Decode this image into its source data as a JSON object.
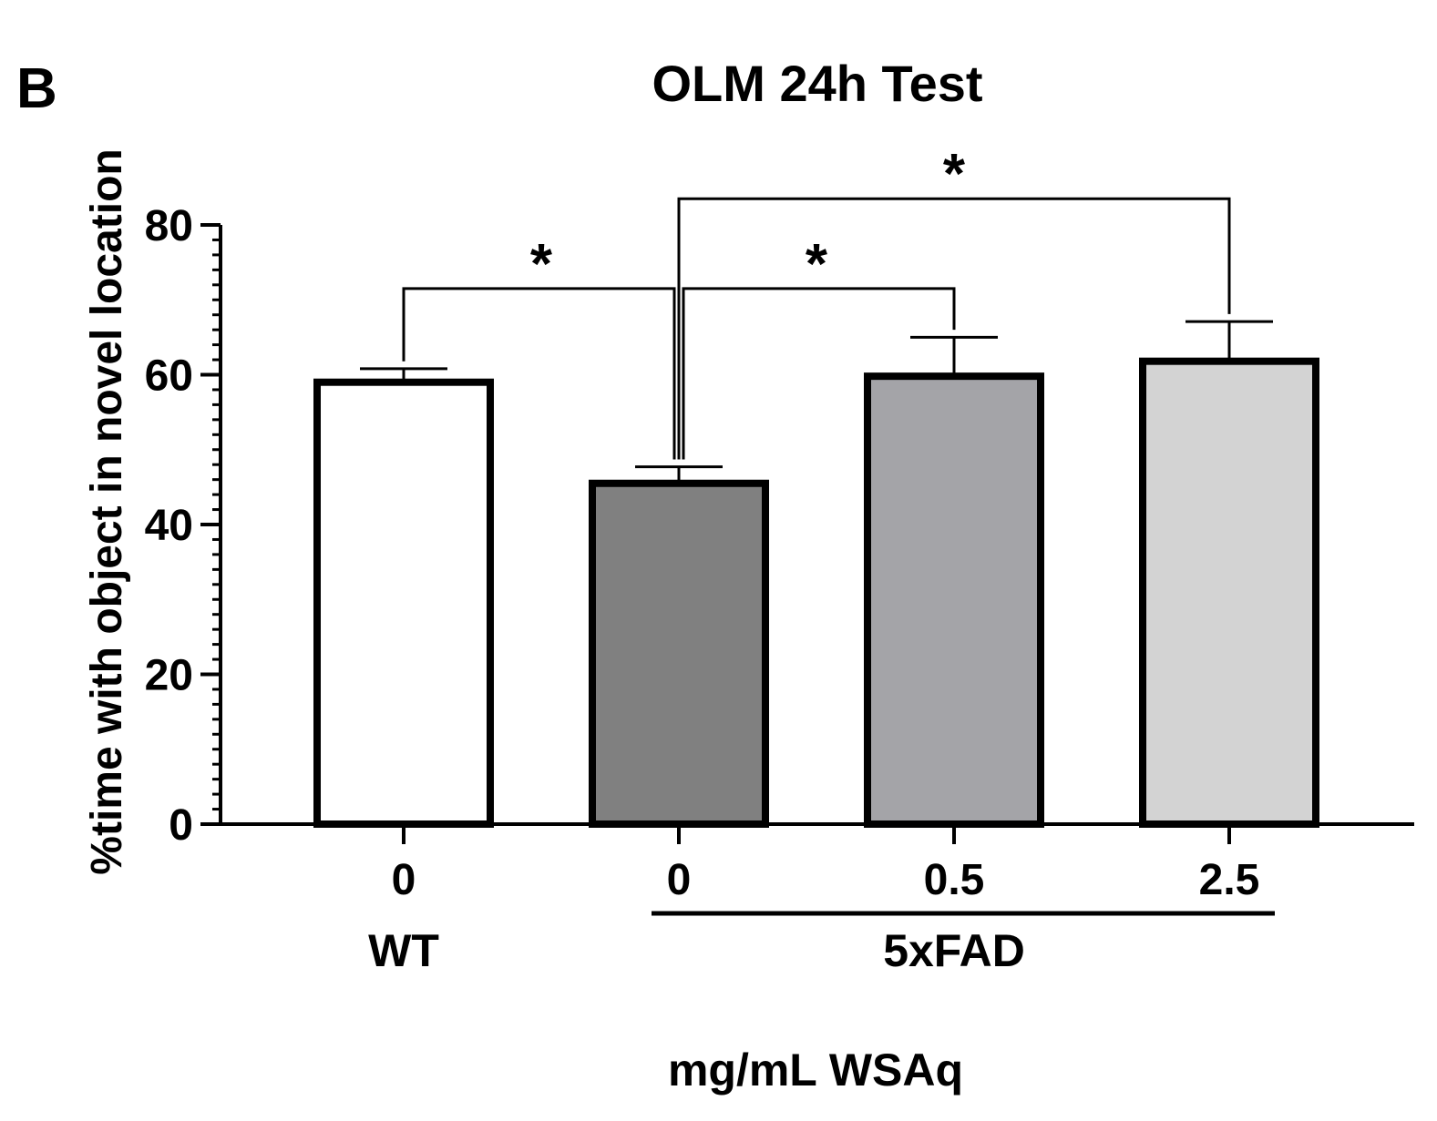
{
  "panel_label": "B",
  "chart_data": {
    "type": "bar",
    "title": "OLM 24h Test",
    "ylabel": "%time with object in novel location",
    "xlabel": "mg/mL WSAq",
    "ylim": [
      0,
      80
    ],
    "yticks": [
      0,
      20,
      40,
      60,
      80
    ],
    "y_minor_step": 2,
    "categories": [
      "0",
      "0",
      "0.5",
      "2.5"
    ],
    "values": [
      59,
      45.5,
      59.8,
      61.8
    ],
    "errors": [
      1.8,
      2.2,
      5.2,
      5.3
    ],
    "colors": [
      "#ffffff",
      "#808080",
      "#a4a4a8",
      "#d3d3d3"
    ],
    "groups": [
      {
        "label": "WT",
        "members": [
          0
        ]
      },
      {
        "label": "5xFAD",
        "members": [
          1,
          2,
          3
        ]
      }
    ],
    "significance": [
      {
        "from": 0,
        "to": 1,
        "label": "*",
        "bracket_y": 71.5
      },
      {
        "from": 1,
        "to": 2,
        "label": "*",
        "bracket_y": 71.5
      },
      {
        "from": 1,
        "to": 3,
        "label": "*",
        "bracket_y": 83.5
      }
    ]
  }
}
